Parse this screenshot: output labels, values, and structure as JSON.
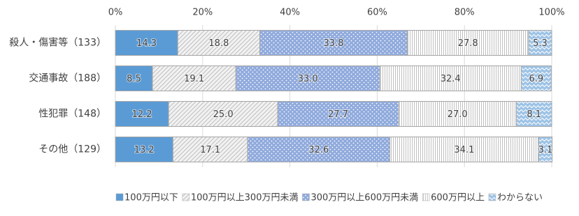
{
  "chart_data": {
    "type": "stacked_barh",
    "categories": [
      "殺人・傷害等（133）",
      "交通事故（188）",
      "性犯罪（148）",
      "その他（129）"
    ],
    "series": [
      {
        "name": "100万円以下",
        "color": "#5b9bd5",
        "pattern": "solid",
        "values": [
          14.3,
          8.5,
          12.2,
          13.2
        ],
        "value_labels": [
          "14.3",
          "8.5",
          "12.2",
          "13.2"
        ]
      },
      {
        "name": "100万円以上300万円未満",
        "color": "#bfbfbf",
        "pattern": "diagonal",
        "values": [
          18.8,
          19.1,
          25.0,
          17.1
        ],
        "value_labels": [
          "18.8",
          "19.1",
          "25.0",
          "17.1"
        ]
      },
      {
        "name": "300万円以上600万円未満",
        "color": "#8faadc",
        "pattern": "dots",
        "values": [
          33.8,
          33.0,
          27.7,
          32.6
        ],
        "value_labels": [
          "33.8",
          "33.0",
          "27.7",
          "32.6"
        ]
      },
      {
        "name": "600万円以上",
        "color": "#bfbfbf",
        "pattern": "vertical",
        "values": [
          27.8,
          32.4,
          27.0,
          34.1
        ],
        "value_labels": [
          "27.8",
          "32.4",
          "27.0",
          "34.1"
        ]
      },
      {
        "name": "わからない",
        "color": "#9dc3e6",
        "pattern": "wave",
        "values": [
          5.3,
          6.9,
          8.1,
          3.1
        ],
        "value_labels": [
          "5.3",
          "6.9",
          "8.1",
          "3.1"
        ]
      }
    ],
    "xlim": [
      0,
      100
    ],
    "xticks": [
      {
        "value": 0,
        "label": "0%"
      },
      {
        "value": 20,
        "label": "20%"
      },
      {
        "value": 40,
        "label": "40%"
      },
      {
        "value": 60,
        "label": "60%"
      },
      {
        "value": 80,
        "label": "80%"
      },
      {
        "value": 100,
        "label": "100%"
      }
    ],
    "grid": true,
    "legend": "bottom"
  }
}
